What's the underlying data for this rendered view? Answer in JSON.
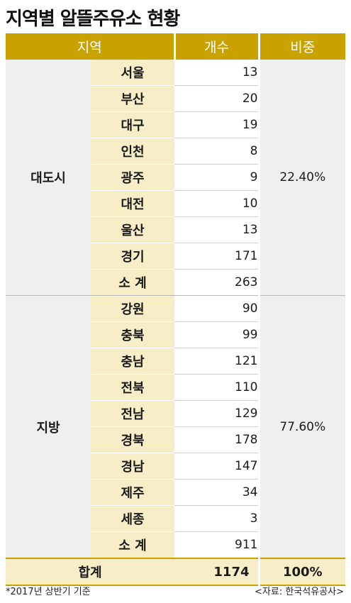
{
  "title": "지역별 알뜰주유소 현황",
  "header": {
    "region": "지역",
    "count": "개수",
    "share": "비중"
  },
  "groups": [
    {
      "name": "대도시",
      "share": "22.40%",
      "rows": [
        {
          "region": "서울",
          "count": "13"
        },
        {
          "region": "부산",
          "count": "20"
        },
        {
          "region": "대구",
          "count": "19"
        },
        {
          "region": "인천",
          "count": "8"
        },
        {
          "region": "광주",
          "count": "9"
        },
        {
          "region": "대전",
          "count": "10"
        },
        {
          "region": "울산",
          "count": "13"
        },
        {
          "region": "경기",
          "count": "171"
        },
        {
          "region": "소 계",
          "count": "263"
        }
      ]
    },
    {
      "name": "지방",
      "share": "77.60%",
      "rows": [
        {
          "region": "강원",
          "count": "90"
        },
        {
          "region": "충북",
          "count": "99"
        },
        {
          "region": "충남",
          "count": "121"
        },
        {
          "region": "전북",
          "count": "110"
        },
        {
          "region": "전남",
          "count": "129"
        },
        {
          "region": "경북",
          "count": "178"
        },
        {
          "region": "경남",
          "count": "147"
        },
        {
          "region": "제주",
          "count": "34"
        },
        {
          "region": "세종",
          "count": "3"
        },
        {
          "region": "소 계",
          "count": "911"
        }
      ]
    }
  ],
  "total": {
    "label": "합계",
    "count": "1174",
    "share": "100%"
  },
  "footnote": "*2017년 상반기 기준",
  "source": "<자료: 한국석유공사>"
}
